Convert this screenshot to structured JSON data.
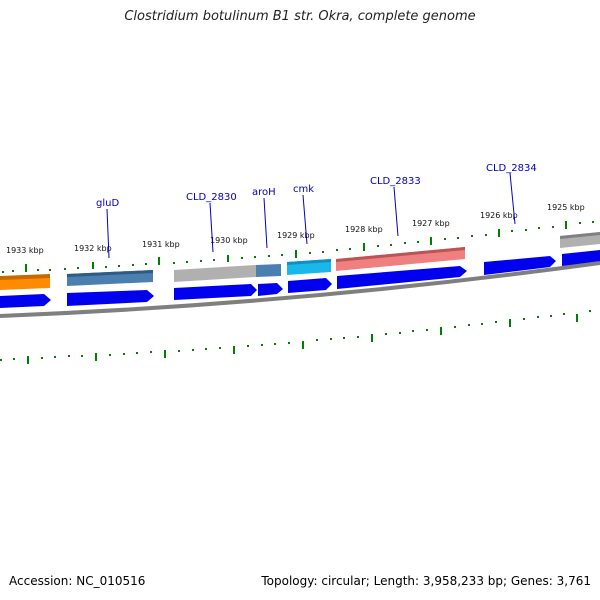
{
  "title": "Clostridium botulinum B1 str. Okra, complete genome",
  "footer": {
    "accession": "Accession: NC_010516",
    "summary": "Topology: circular; Length: 3,958,233 bp; Genes: 3,761"
  },
  "kbp_labels": [
    "1933 kbp",
    "1932 kbp",
    "1931 kbp",
    "1930 kbp",
    "1929 kbp",
    "1928 kbp",
    "1927 kbp",
    "1926 kbp",
    "1925 kbp"
  ],
  "gene_labels": [
    "gluD",
    "CLD_2830",
    "aroH",
    "cmk",
    "CLD_2833",
    "CLD_2834"
  ],
  "colors": {
    "cds": "#0000ee",
    "orange": "#ff8c00",
    "steelblue": "#4a7fb0",
    "gray": "#b0b0b0",
    "cyan": "#1ab8ea",
    "salmon": "#f08080",
    "tick": "#008000",
    "backbone": "#7f7f7f"
  }
}
